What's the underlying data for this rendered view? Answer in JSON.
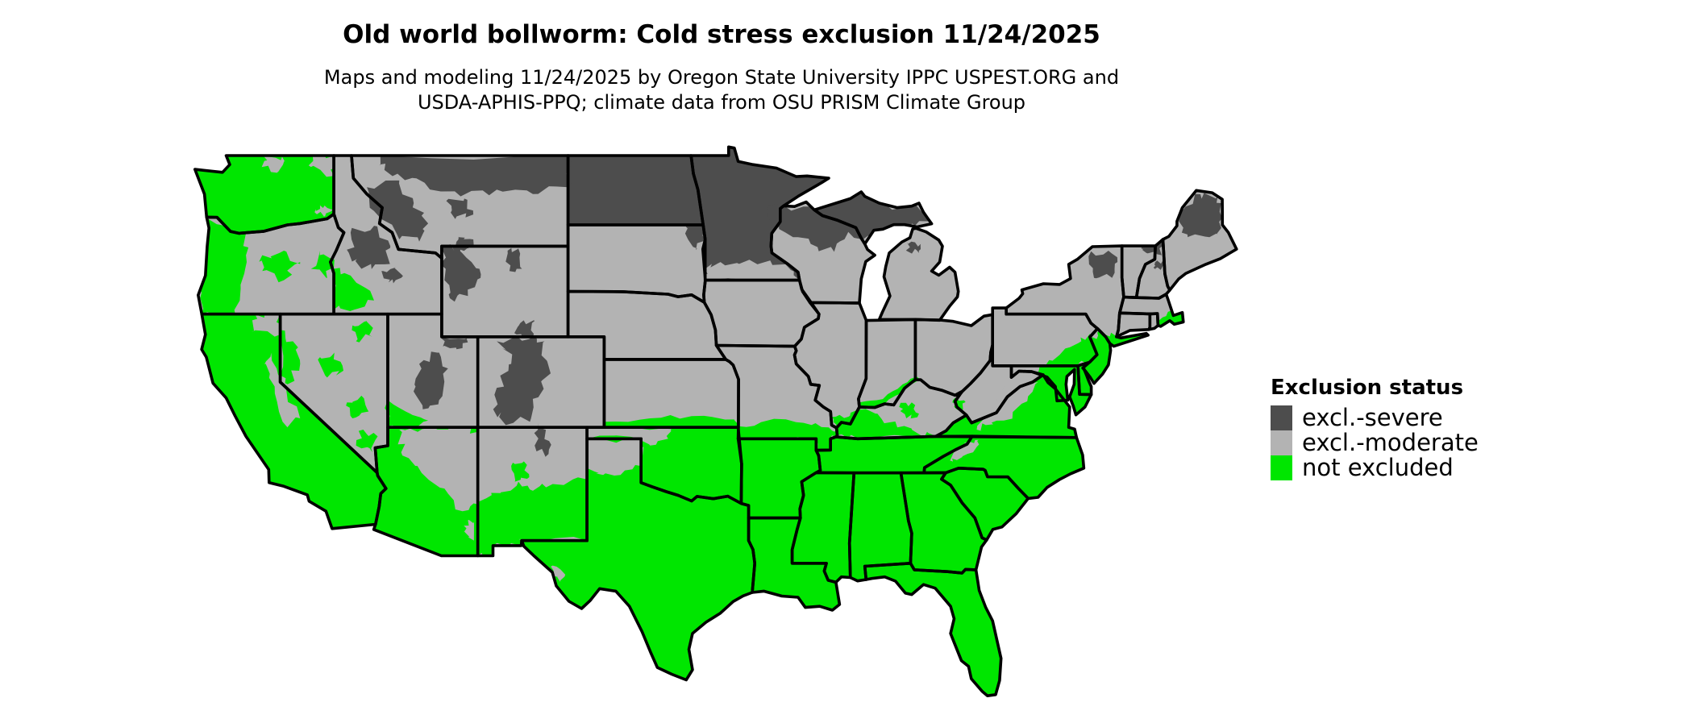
{
  "title": "Old world bollworm: Cold stress exclusion 11/24/2025",
  "subtitle": {
    "line1": "Maps and modeling 11/24/2025 by Oregon State University IPPC USPEST.ORG and",
    "line2": "USDA-APHIS-PPQ; climate data from OSU PRISM Climate Group"
  },
  "legend": {
    "title": "Exclusion status",
    "items": [
      {
        "label": "excl.-severe",
        "color": "#4d4d4d"
      },
      {
        "label": "excl.-moderate",
        "color": "#b3b3b3"
      },
      {
        "label": "not excluded",
        "color": "#00e600"
      }
    ]
  },
  "map": {
    "background": "#ffffff",
    "state_border_color": "#000000"
  }
}
